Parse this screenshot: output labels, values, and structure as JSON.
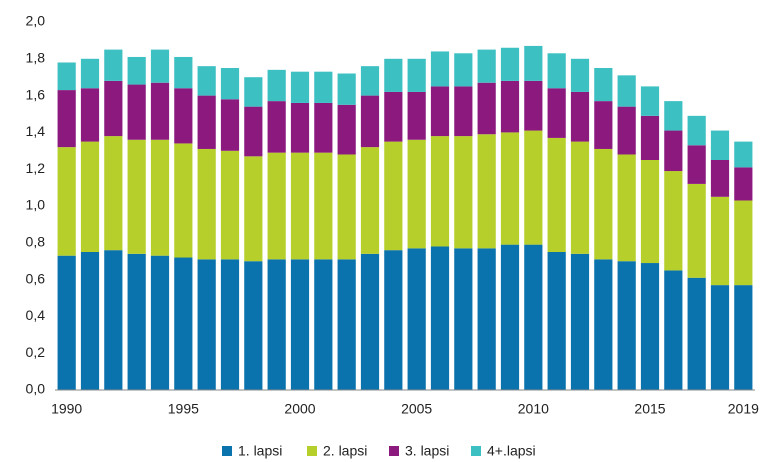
{
  "chart_data": {
    "type": "stacked_bar",
    "categories": [
      1990,
      null,
      null,
      null,
      null,
      1995,
      null,
      null,
      null,
      null,
      2000,
      null,
      null,
      null,
      null,
      2005,
      null,
      null,
      null,
      null,
      2010,
      null,
      null,
      null,
      null,
      2015,
      null,
      null,
      null,
      2019
    ],
    "series": [
      {
        "name": "1. lapsi",
        "color": "#0a72ad",
        "values": [
          0.73,
          0.75,
          0.76,
          0.74,
          0.73,
          0.72,
          0.71,
          0.71,
          0.7,
          0.71,
          0.71,
          0.71,
          0.71,
          0.74,
          0.76,
          0.77,
          0.78,
          0.77,
          0.77,
          0.79,
          0.79,
          0.75,
          0.74,
          0.71,
          0.7,
          0.69,
          0.65,
          0.61,
          0.57,
          0.57
        ]
      },
      {
        "name": "2. lapsi",
        "color": "#b6cf2a",
        "values": [
          0.59,
          0.6,
          0.62,
          0.62,
          0.63,
          0.62,
          0.6,
          0.59,
          0.57,
          0.58,
          0.58,
          0.58,
          0.57,
          0.58,
          0.59,
          0.59,
          0.6,
          0.61,
          0.62,
          0.61,
          0.62,
          0.62,
          0.61,
          0.6,
          0.58,
          0.56,
          0.54,
          0.51,
          0.48,
          0.46
        ]
      },
      {
        "name": "3. lapsi",
        "color": "#8c1a7e",
        "values": [
          0.31,
          0.29,
          0.3,
          0.3,
          0.31,
          0.3,
          0.29,
          0.28,
          0.27,
          0.28,
          0.27,
          0.27,
          0.27,
          0.28,
          0.27,
          0.26,
          0.27,
          0.27,
          0.28,
          0.28,
          0.27,
          0.27,
          0.27,
          0.26,
          0.26,
          0.24,
          0.22,
          0.21,
          0.2,
          0.18
        ]
      },
      {
        "name": "4+.lapsi",
        "color": "#3dc0c2",
        "values": [
          0.15,
          0.16,
          0.17,
          0.15,
          0.18,
          0.17,
          0.16,
          0.17,
          0.16,
          0.17,
          0.17,
          0.17,
          0.17,
          0.16,
          0.18,
          0.18,
          0.19,
          0.18,
          0.18,
          0.18,
          0.19,
          0.19,
          0.18,
          0.18,
          0.17,
          0.16,
          0.16,
          0.16,
          0.16,
          0.14
        ]
      }
    ],
    "ylim": [
      0,
      2.0
    ],
    "yticks": [
      {
        "value": 0,
        "label": "0,0"
      },
      {
        "value": 0.2,
        "label": "0,2"
      },
      {
        "value": 0.4,
        "label": "0,4"
      },
      {
        "value": 0.6,
        "label": "0,6"
      },
      {
        "value": 0.8,
        "label": "0,8"
      },
      {
        "value": 1.0,
        "label": "1,0"
      },
      {
        "value": 1.2,
        "label": "1,2"
      },
      {
        "value": 1.4,
        "label": "1,4"
      },
      {
        "value": 1.6,
        "label": "1,6"
      },
      {
        "value": 1.8,
        "label": "1,8"
      },
      {
        "value": 2.0,
        "label": "2,0"
      }
    ],
    "grid": false,
    "legend": "bottom"
  }
}
